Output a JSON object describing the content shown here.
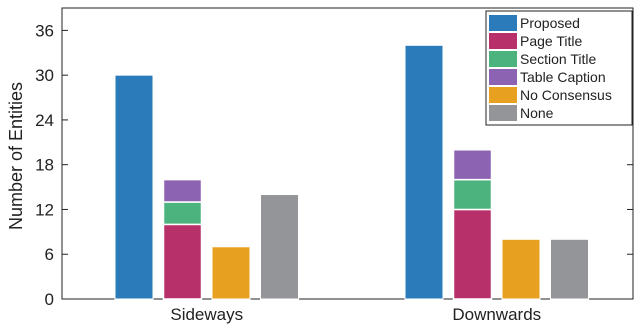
{
  "chart_data": {
    "type": "bar",
    "ylabel": "Number of Entities",
    "ylim": [
      0,
      39
    ],
    "yticks": [
      0,
      6,
      12,
      18,
      24,
      30,
      36
    ],
    "categories": [
      "Sideways",
      "Downwards"
    ],
    "legend_position": "top-right",
    "series": [
      {
        "name": "Proposed",
        "color": "#2b7bba",
        "values": [
          30,
          34
        ]
      },
      {
        "name": "Page Title",
        "color": "#b8306a",
        "values": [
          10,
          12
        ]
      },
      {
        "name": "Section Title",
        "color": "#4db37e",
        "values": [
          3,
          4
        ]
      },
      {
        "name": "Table Caption",
        "color": "#8c62b3",
        "values": [
          3,
          4
        ]
      },
      {
        "name": "No Consensus",
        "color": "#e8a020",
        "values": [
          7,
          8
        ]
      },
      {
        "name": "None",
        "color": "#939598",
        "values": [
          14,
          8
        ]
      }
    ],
    "stacks": [
      {
        "position": 2,
        "series": [
          "Page Title",
          "Section Title",
          "Table Caption"
        ]
      }
    ]
  }
}
